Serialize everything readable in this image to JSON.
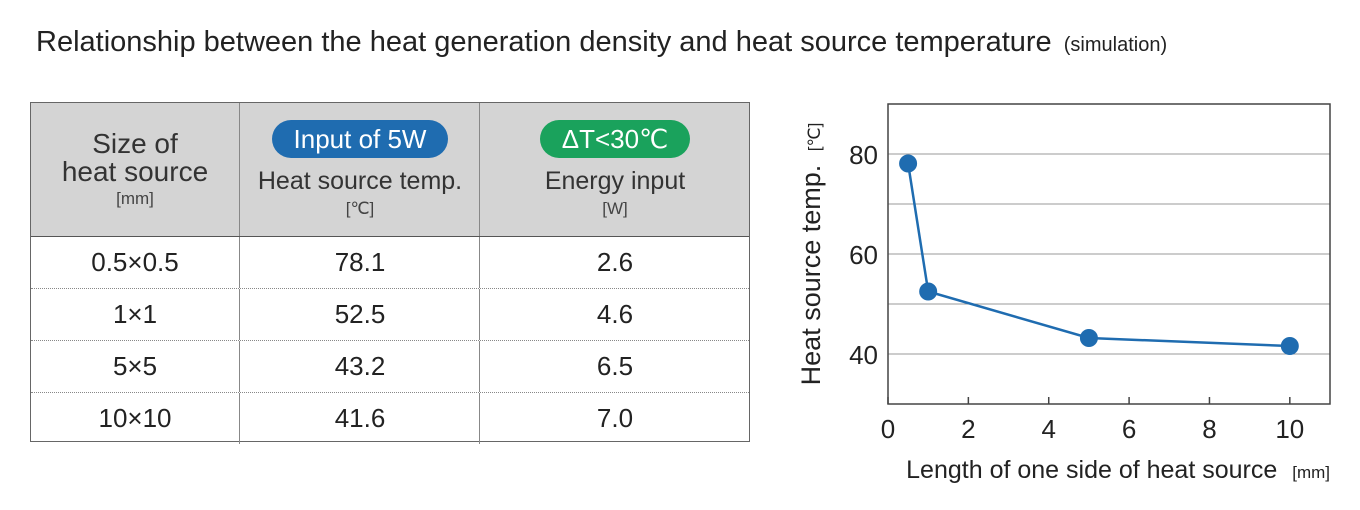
{
  "title": {
    "main": "Relationship between the heat generation density and heat source temperature",
    "note": "(simulation)"
  },
  "table": {
    "col1": {
      "line1": "Size of",
      "line2": "heat source",
      "unit": "[mm]"
    },
    "col2": {
      "badge": "Input of 5W",
      "label": "Heat source temp.",
      "unit": "[℃]"
    },
    "col3": {
      "badge": "ΔT<30℃",
      "label": "Energy input",
      "unit": "[W]"
    },
    "rows": [
      {
        "size": "0.5×0.5",
        "temp": "78.1",
        "energy": "2.6"
      },
      {
        "size": "1×1",
        "temp": "52.5",
        "energy": "4.6"
      },
      {
        "size": "5×5",
        "temp": "43.2",
        "energy": "6.5"
      },
      {
        "size": "10×10",
        "temp": "41.6",
        "energy": "7.0"
      }
    ]
  },
  "colors": {
    "line": "#1f6cb0",
    "badge_blue": "#1f6cb0",
    "badge_green": "#1aa25c",
    "header_bg": "#d4d4d4"
  },
  "chart_data": {
    "type": "line",
    "x": [
      0.5,
      1,
      5,
      10
    ],
    "y": [
      78.1,
      52.5,
      43.2,
      41.6
    ],
    "xlabel": "Length of one side of heat source",
    "xunit": "[mm]",
    "ylabel": "Heat source temp.",
    "yunit": "[℃]",
    "xlim": [
      0,
      11
    ],
    "ylim": [
      30,
      90
    ],
    "xticks": [
      0,
      2,
      4,
      6,
      8,
      10
    ],
    "yticks": [
      40,
      60,
      80
    ],
    "grid": "horizontal"
  }
}
